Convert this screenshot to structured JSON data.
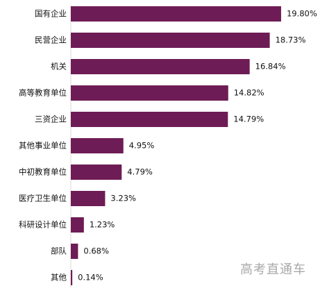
{
  "chart_data": {
    "type": "bar",
    "orientation": "horizontal",
    "categories": [
      "国有企业",
      "民营企业",
      "机关",
      "高等教育单位",
      "三资企业",
      "其他事业单位",
      "中初教育单位",
      "医疗卫生单位",
      "科研设计单位",
      "部队",
      "其他"
    ],
    "values": [
      19.8,
      18.73,
      16.84,
      14.82,
      14.79,
      4.95,
      4.79,
      3.23,
      1.23,
      0.68,
      0.14
    ],
    "value_labels": [
      "19.80%",
      "18.73%",
      "16.84%",
      "14.82%",
      "14.79%",
      "4.95%",
      "4.79%",
      "3.23%",
      "1.23%",
      "0.68%",
      "0.14%"
    ],
    "title": "",
    "xlabel": "",
    "ylabel": "",
    "xlim": [
      0,
      20
    ],
    "grid": false,
    "legend": "none",
    "bar_color": "#6e1c55"
  },
  "watermark": "高考直通车"
}
